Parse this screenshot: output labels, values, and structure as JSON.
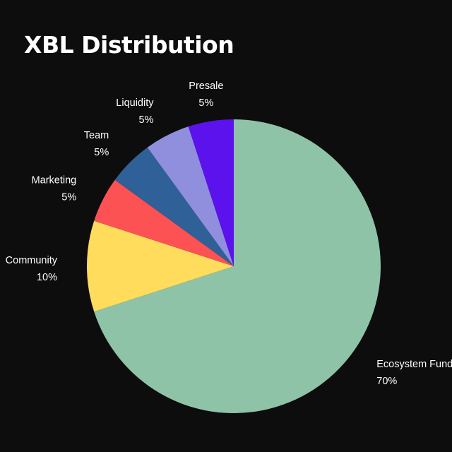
{
  "chart_data": {
    "type": "pie",
    "title": "XBL Distribution",
    "start_angle_deg": 0,
    "direction": "clockwise",
    "slices": [
      {
        "label": "Ecosystem Fund",
        "value": 70,
        "value_label": "70%",
        "color": "#8fc3a7"
      },
      {
        "label": "Community",
        "value": 10,
        "value_label": "10%",
        "color": "#ffdc5b"
      },
      {
        "label": "Marketing",
        "value": 5,
        "value_label": "5%",
        "color": "#fc5253"
      },
      {
        "label": "Team",
        "value": 5,
        "value_label": "5%",
        "color": "#2f6097"
      },
      {
        "label": "Liquidity",
        "value": 5,
        "value_label": "5%",
        "color": "#8f8fde"
      },
      {
        "label": "Presale",
        "value": 5,
        "value_label": "5%",
        "color": "#5b12ec"
      }
    ],
    "legend": "none"
  }
}
